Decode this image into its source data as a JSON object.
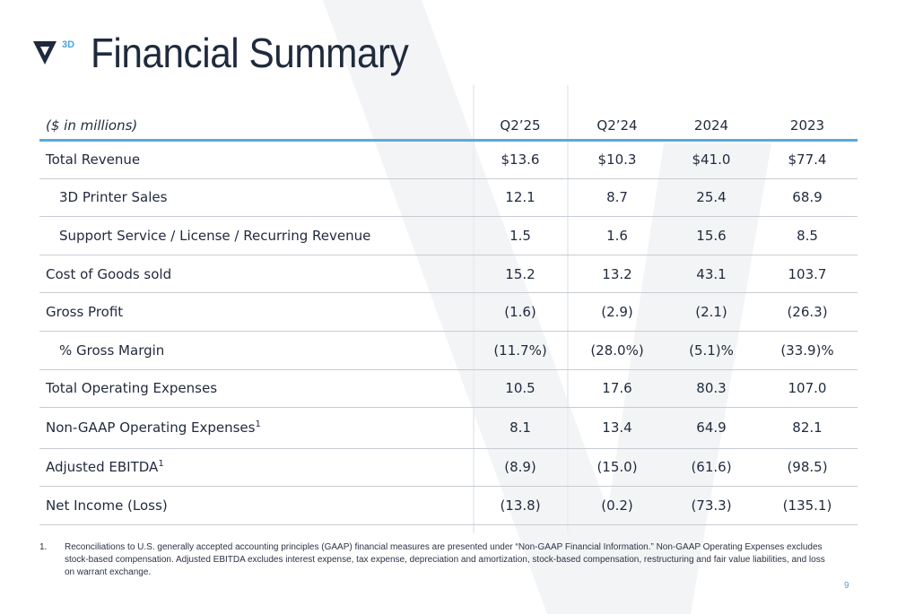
{
  "header": {
    "logo_text": "3D",
    "title": "Financial Summary"
  },
  "table": {
    "unit_label": "($ in millions)",
    "columns": [
      "Q2’25",
      "Q2’24",
      "2024",
      "2023"
    ],
    "rows": [
      {
        "label": "Total Revenue",
        "values": [
          "$13.6",
          "$10.3",
          "$41.0",
          "$77.4"
        ]
      },
      {
        "label": "3D Printer Sales",
        "values": [
          "12.1",
          "8.7",
          "25.4",
          "68.9"
        ]
      },
      {
        "label": "Support Service / License / Recurring Revenue",
        "values": [
          "1.5",
          "1.6",
          "15.6",
          "8.5"
        ]
      },
      {
        "label": "Cost of Goods sold",
        "values": [
          "15.2",
          "13.2",
          "43.1",
          "103.7"
        ]
      },
      {
        "label": "Gross Profit",
        "values": [
          "(1.6)",
          "(2.9)",
          "(2.1)",
          "(26.3)"
        ]
      },
      {
        "label": "% Gross Margin",
        "values": [
          "(11.7%)",
          "(28.0%)",
          "(5.1)%",
          "(33.9)%"
        ]
      },
      {
        "label": "Total Operating Expenses",
        "values": [
          "10.5",
          "17.6",
          "80.3",
          "107.0"
        ]
      },
      {
        "label": "Non-GAAP Operating Expenses",
        "footnote_ref": "1",
        "values": [
          "8.1",
          "13.4",
          "64.9",
          "82.1"
        ]
      },
      {
        "label": "Adjusted EBITDA",
        "footnote_ref": "1",
        "values": [
          "(8.9)",
          "(15.0)",
          "(61.6)",
          "(98.5)"
        ]
      },
      {
        "label": "Net Income (Loss)",
        "values": [
          "(13.8)",
          "(0.2)",
          "(73.3)",
          "(135.1)"
        ]
      }
    ]
  },
  "footnote": {
    "number": "1.",
    "text": "Reconciliations to U.S. generally accepted accounting principles (GAAP) financial measures are presented under “Non-GAAP Financial Information.”  Non-GAAP Operating Expenses excludes stock-based compensation. Adjusted EBITDA excludes interest expense, tax expense, depreciation and amortization, stock-based compensation, restructuring and fair value liabilities, and loss on warrant exchange."
  },
  "page_number": "9",
  "colors": {
    "accent": "#5aa9df",
    "text": "#1f2a3c",
    "rule": "#c8ccd2"
  }
}
